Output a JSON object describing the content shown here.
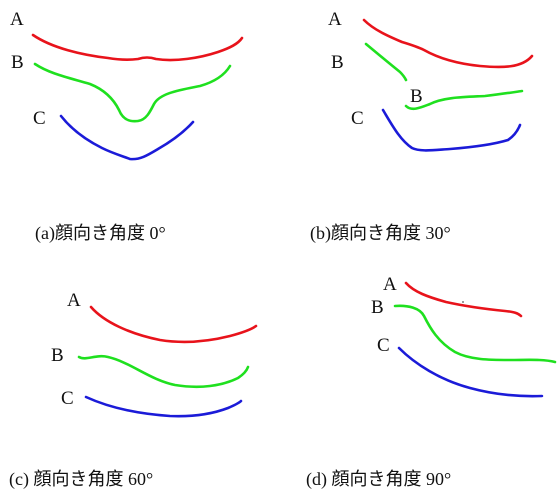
{
  "colors": {
    "A": "#e8131b",
    "B": "#1fe01f",
    "C": "#1b1bd8"
  },
  "panels": [
    {
      "id": "a",
      "caption": "(a)顔向き角度 0°",
      "labels": [
        {
          "curve": "A",
          "text": "A"
        },
        {
          "curve": "B",
          "text": "B"
        },
        {
          "curve": "C",
          "text": "C"
        }
      ]
    },
    {
      "id": "b",
      "caption": "(b)顔向き角度 30°",
      "labels": [
        {
          "curve": "A",
          "text": "A"
        },
        {
          "curve": "B",
          "text": "B"
        },
        {
          "curve": "B",
          "text": "B"
        },
        {
          "curve": "C",
          "text": "C"
        }
      ]
    },
    {
      "id": "c",
      "caption": "(c) 顔向き角度 60°",
      "labels": [
        {
          "curve": "A",
          "text": "A"
        },
        {
          "curve": "B",
          "text": "B"
        },
        {
          "curve": "C",
          "text": "C"
        }
      ]
    },
    {
      "id": "d",
      "caption": "(d) 顔向き角度 90°",
      "labels": [
        {
          "curve": "A",
          "text": "A"
        },
        {
          "curve": "B",
          "text": "B"
        },
        {
          "curve": "C",
          "text": "C"
        }
      ]
    }
  ]
}
